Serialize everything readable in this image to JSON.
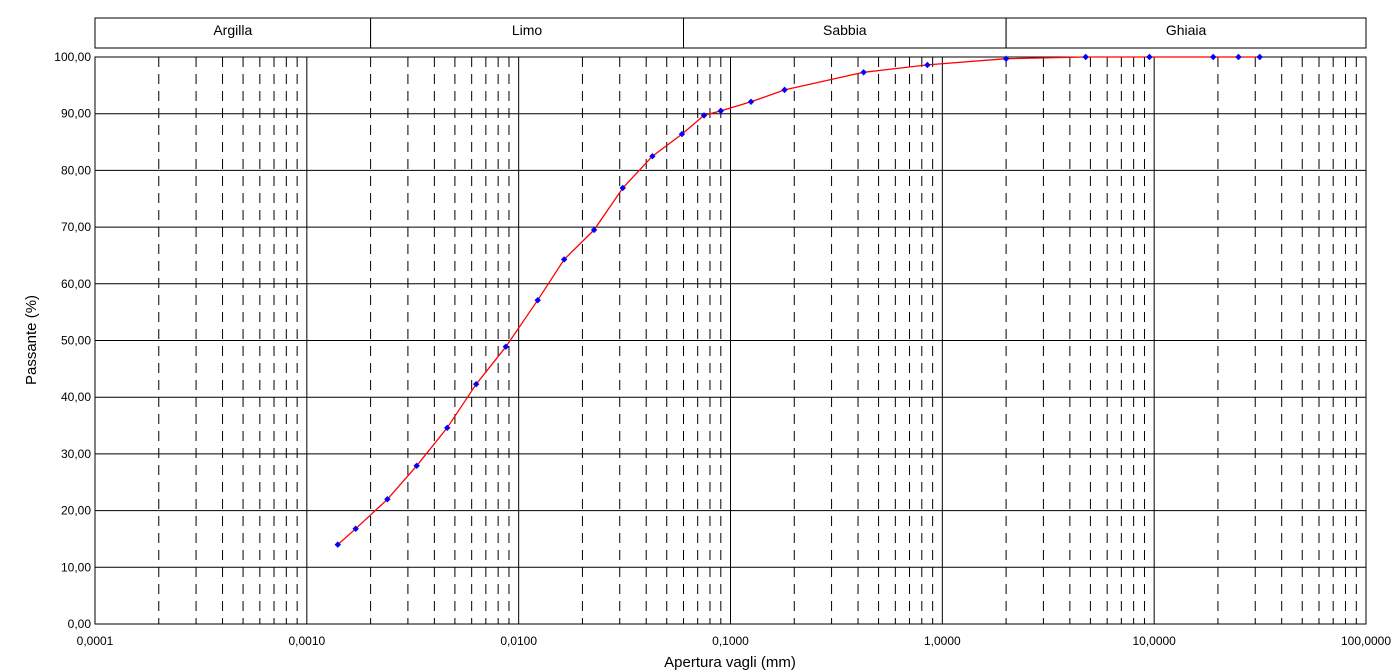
{
  "chart_data": {
    "type": "scatter",
    "x_scale": "log",
    "xlim": [
      0.0001,
      100
    ],
    "ylim": [
      0,
      100
    ],
    "xlabel": "Apertura vagli (mm)",
    "ylabel": "Passante (%)",
    "x_ticks": [
      "0,0001",
      "0,0010",
      "0,0100",
      "0,1000",
      "1,0000",
      "10,0000",
      "100,0000"
    ],
    "y_ticks": [
      "0,00",
      "10,00",
      "20,00",
      "30,00",
      "40,00",
      "50,00",
      "60,00",
      "70,00",
      "80,00",
      "90,00",
      "100,00"
    ],
    "grid": true,
    "bands": [
      {
        "label": "Argilla",
        "from": 0.0001,
        "to": 0.002
      },
      {
        "label": "Limo",
        "from": 0.002,
        "to": 0.06
      },
      {
        "label": "Sabbia",
        "from": 0.06,
        "to": 2
      },
      {
        "label": "Ghiaia",
        "from": 2,
        "to": 100
      }
    ],
    "series": [
      {
        "marker_color": "#0000ff",
        "line_color": "#ff0000",
        "points": [
          [
            0.0014,
            14.0
          ],
          [
            0.0017,
            16.8
          ],
          [
            0.0024,
            22.0
          ],
          [
            0.0033,
            27.9
          ],
          [
            0.0046,
            34.6
          ],
          [
            0.0063,
            42.3
          ],
          [
            0.0087,
            48.9
          ],
          [
            0.0123,
            57.1
          ],
          [
            0.0164,
            64.3
          ],
          [
            0.0227,
            69.5
          ],
          [
            0.031,
            76.9
          ],
          [
            0.0428,
            82.5
          ],
          [
            0.059,
            86.4
          ],
          [
            0.075,
            89.7
          ],
          [
            0.09,
            90.5
          ],
          [
            0.125,
            92.1
          ],
          [
            0.18,
            94.2
          ],
          [
            0.425,
            97.3
          ],
          [
            0.85,
            98.6
          ],
          [
            2,
            99.7
          ],
          [
            4.75,
            100
          ],
          [
            9.5,
            100
          ],
          [
            19,
            100
          ],
          [
            25,
            100
          ],
          [
            31.5,
            100
          ]
        ]
      }
    ]
  }
}
